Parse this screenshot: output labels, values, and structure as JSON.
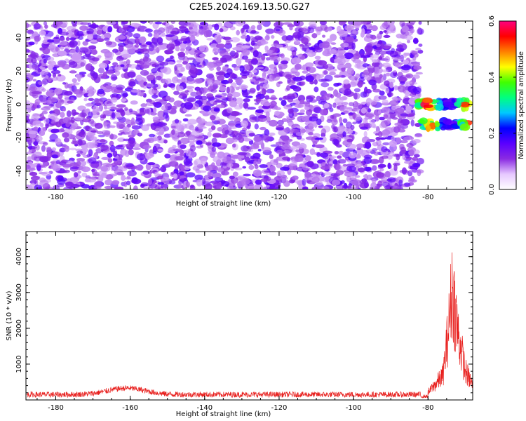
{
  "figure": {
    "title": "C2E5.2024.169.13.50.G27"
  },
  "chart_data": [
    {
      "type": "heatmap",
      "xlabel": "Height of straight line (km)",
      "ylabel": "Frequency (Hz)",
      "xlim": [
        -188,
        -68
      ],
      "ylim": [
        -51,
        50
      ],
      "xticks": [
        -180,
        -160,
        -140,
        -120,
        -100,
        -80
      ],
      "yticks": [
        -40,
        -20,
        0,
        20,
        40
      ],
      "colorbar": {
        "label": "Normalized spectral amplitude",
        "range": [
          0.0,
          0.6
        ],
        "ticks": [
          0.0,
          0.2,
          0.4,
          0.6
        ],
        "colormap": [
          "#ffffff",
          "#e6c8ff",
          "#8a2be2",
          "#5a00ff",
          "#0000ff",
          "#00c8ff",
          "#00ff80",
          "#40ff00",
          "#ffff00",
          "#ff8000",
          "#ff0000",
          "#ff0080"
        ]
      },
      "noise_extent_km": [
        -188,
        -82
      ],
      "noise_level": 0.05,
      "signal_blobs": [
        {
          "x_range": [
            -83,
            -69
          ],
          "y": 0,
          "peak": 0.6
        },
        {
          "x_range": [
            -82,
            -69
          ],
          "y": -12,
          "peak": 0.55
        }
      ],
      "grid": false
    },
    {
      "type": "line",
      "xlabel": "Height of straight line (km)",
      "ylabel": "SNR (10 * v/v)",
      "xlim": [
        -188,
        -68
      ],
      "ylim": [
        0,
        4700
      ],
      "xticks": [
        -180,
        -160,
        -140,
        -120,
        -100,
        -80
      ],
      "yticks": [
        1000,
        2000,
        3000,
        4000
      ],
      "color": "#e8201e",
      "baseline": 150,
      "noise": 80,
      "features": [
        {
          "x": -163,
          "value": 400
        },
        {
          "x": -158,
          "value": 330
        },
        {
          "x": -80,
          "value": 300
        },
        {
          "x": -76,
          "value": 1000
        },
        {
          "x": -74.5,
          "value": 2900
        },
        {
          "x": -73.5,
          "value": 4700
        },
        {
          "x": -72,
          "value": 2800
        },
        {
          "x": -70,
          "value": 1200
        },
        {
          "x": -68,
          "value": 600
        }
      ],
      "grid": false
    }
  ]
}
